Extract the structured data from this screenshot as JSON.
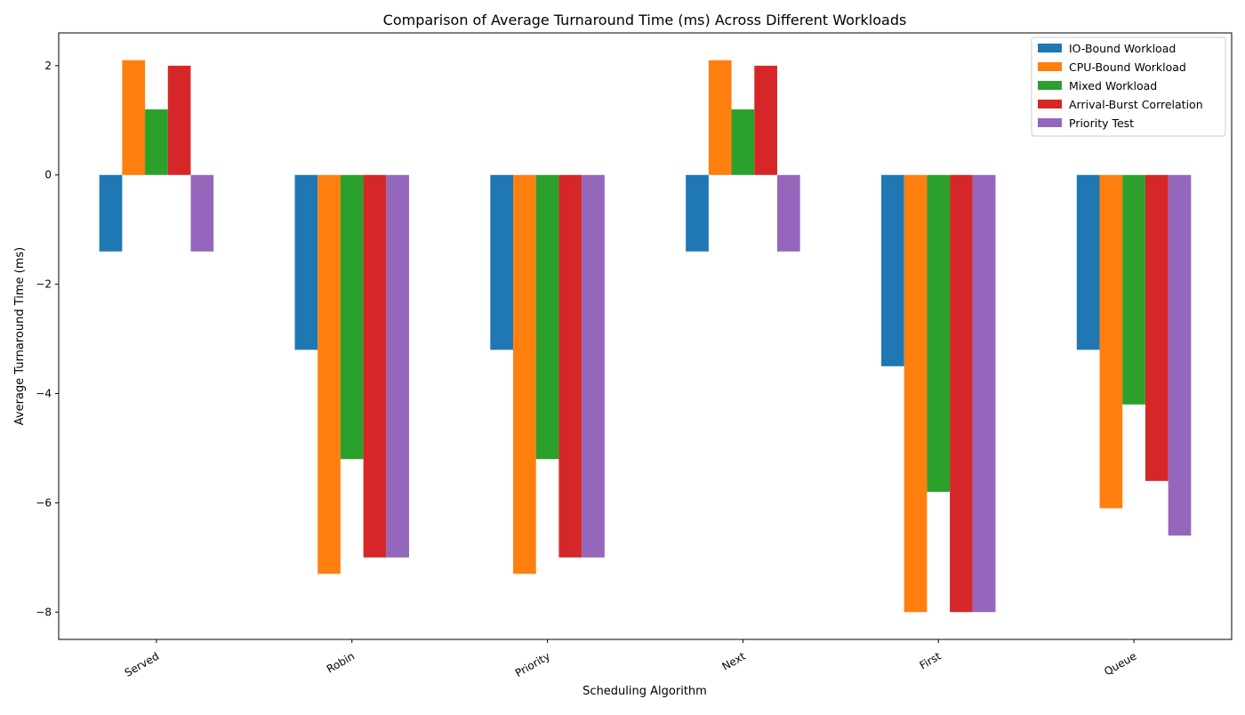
{
  "chart_data": {
    "type": "bar",
    "title": "Comparison of Average Turnaround Time (ms) Across Different Workloads",
    "xlabel": "Scheduling Algorithm",
    "ylabel": "Average Turnaround Time (ms)",
    "categories": [
      "Served",
      "Robin",
      "Priority",
      "Next",
      "First",
      "Queue"
    ],
    "ylim": [
      -8.5,
      2.6
    ],
    "yticks": [
      2,
      0,
      -2,
      -4,
      -6,
      -8
    ],
    "grid": false,
    "legend_position": "top-right",
    "series": [
      {
        "name": "IO-Bound Workload",
        "color": "#1f77b4",
        "values": [
          -1.4,
          -3.2,
          -3.2,
          -1.4,
          -3.5,
          -3.2
        ]
      },
      {
        "name": "CPU-Bound Workload",
        "color": "#ff7f0e",
        "values": [
          2.1,
          -7.3,
          -7.3,
          2.1,
          -8.0,
          -6.1
        ]
      },
      {
        "name": "Mixed Workload",
        "color": "#2ca02c",
        "values": [
          1.2,
          -5.2,
          -5.2,
          1.2,
          -5.8,
          -4.2
        ]
      },
      {
        "name": "Arrival-Burst Correlation",
        "color": "#d62728",
        "values": [
          2.0,
          -7.0,
          -7.0,
          2.0,
          -8.0,
          -5.6
        ]
      },
      {
        "name": "Priority Test",
        "color": "#9467bd",
        "values": [
          -1.4,
          -7.0,
          -7.0,
          -1.4,
          -8.0,
          -6.6
        ]
      }
    ]
  }
}
